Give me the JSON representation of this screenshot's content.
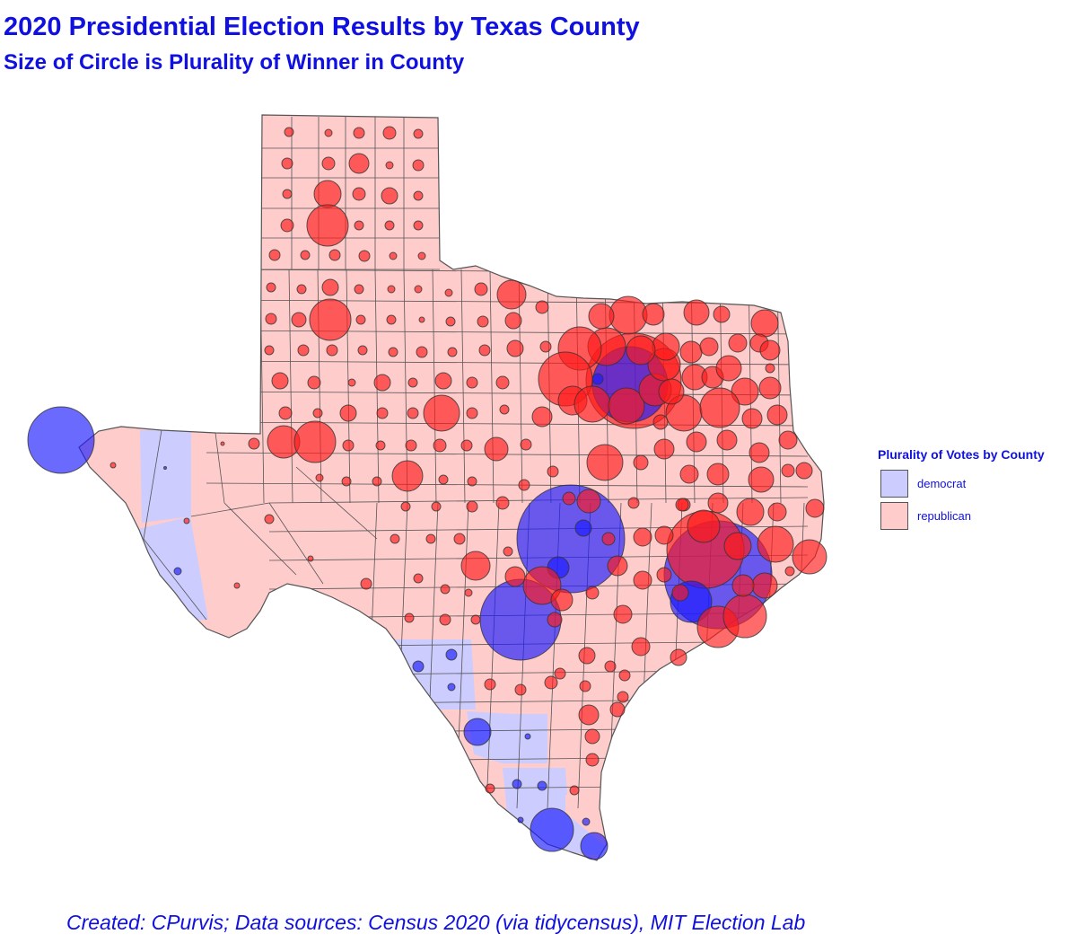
{
  "title": "2020 Presidential Election Results by Texas County",
  "subtitle": "Size of Circle is Plurality of Winner in County",
  "legend": {
    "title": "Plurality of Votes by County",
    "items": [
      {
        "label": "democrat",
        "fill": "#ccccff"
      },
      {
        "label": "republican",
        "fill": "#ffcccc"
      }
    ]
  },
  "colors": {
    "democrat_county": "#ccccff",
    "republican_county": "#ffcccc",
    "democrat_circle": "#1a1aff",
    "republican_circle": "#ff1a1a",
    "county_border": "#555555"
  },
  "caption": "Created: CPurvis; Data sources: Census 2020 (via tidycensus), MIT Election Lab"
}
